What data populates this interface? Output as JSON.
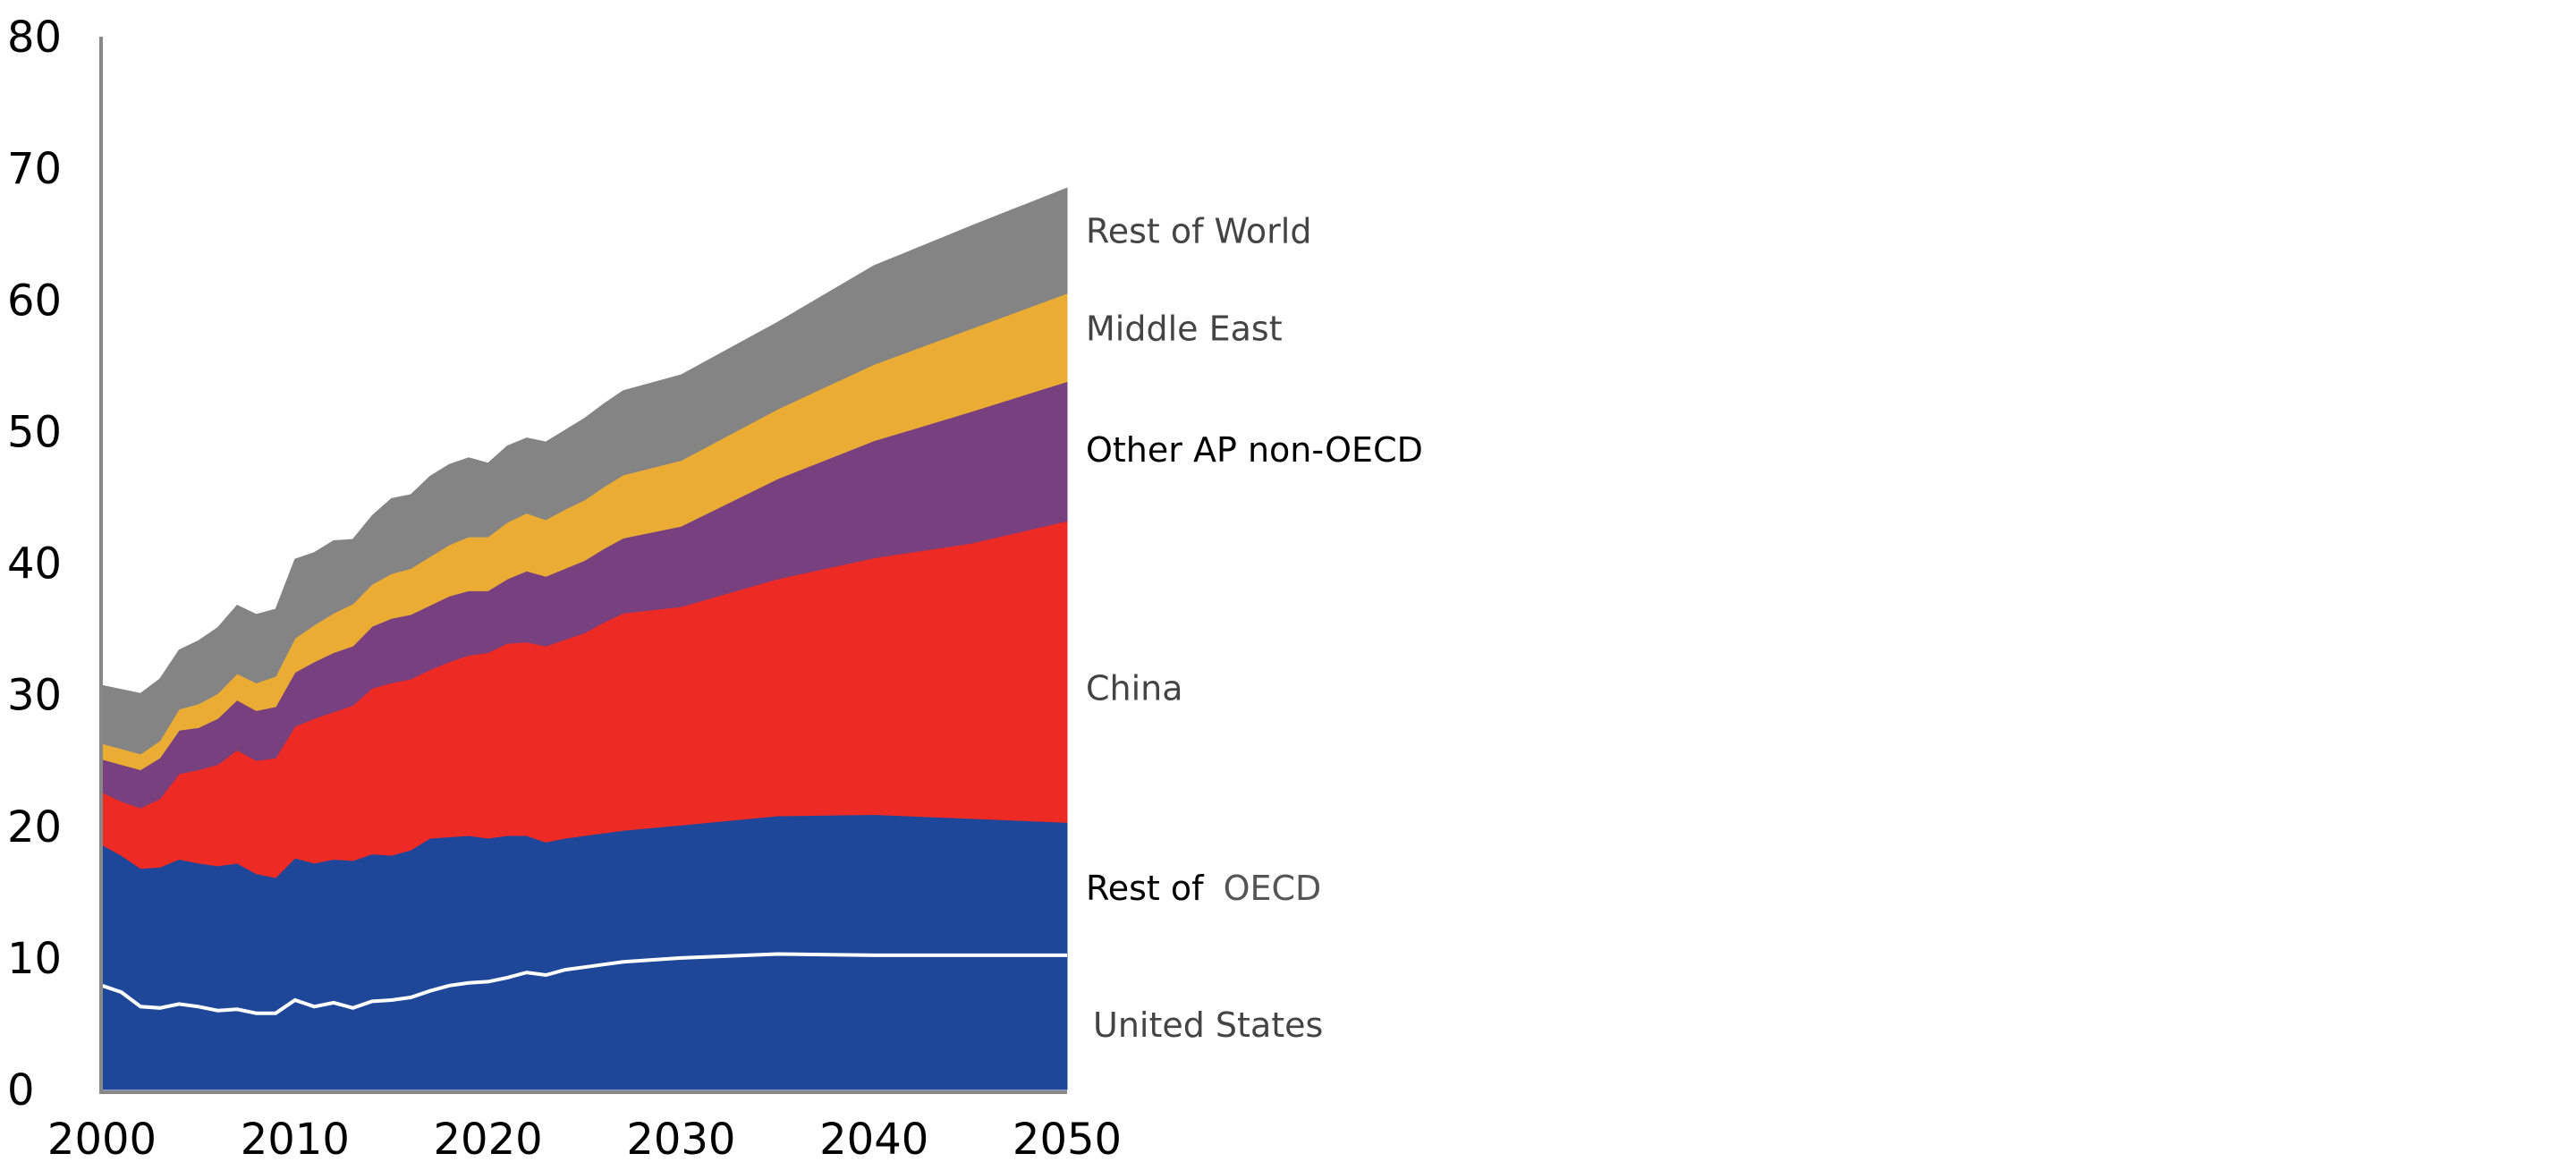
{
  "chart_data": {
    "type": "area",
    "stacked": true,
    "title": "",
    "xlabel": "",
    "ylabel": "",
    "xlim": [
      2000,
      2050
    ],
    "ylim": [
      0,
      80
    ],
    "yticks": [
      0,
      10,
      20,
      30,
      40,
      50,
      60,
      70,
      80
    ],
    "xticks": [
      2000,
      2010,
      2020,
      2030,
      2040,
      2050
    ],
    "ytick_labels": [
      "0",
      "10",
      "20",
      "30",
      "40",
      "50",
      "60",
      "70",
      "80"
    ],
    "xtick_labels": [
      "2000",
      "2010",
      "2020",
      "2030",
      "2040",
      "2050"
    ],
    "grid": false,
    "legend": "direct-labels-right",
    "x": [
      2000,
      2001,
      2002,
      2003,
      2004,
      2005,
      2006,
      2007,
      2008,
      2009,
      2010,
      2011,
      2012,
      2013,
      2014,
      2015,
      2016,
      2017,
      2018,
      2019,
      2020,
      2021,
      2022,
      2023,
      2024,
      2025,
      2026,
      2027,
      2030,
      2035,
      2040,
      2045,
      2050
    ],
    "series": [
      {
        "name": "United States",
        "label": "United States",
        "color": "#1e4799",
        "label_color": "#444444",
        "values": [
          7.9,
          7.4,
          6.3,
          6.2,
          6.5,
          6.3,
          6.0,
          6.1,
          5.8,
          5.8,
          6.8,
          6.3,
          6.6,
          6.2,
          6.7,
          6.8,
          7.0,
          7.5,
          7.9,
          8.1,
          8.2,
          8.5,
          8.9,
          8.7,
          9.1,
          9.3,
          9.5,
          9.7,
          10.0,
          10.3,
          10.2,
          10.2,
          10.2
        ]
      },
      {
        "name": "Rest of OECD",
        "label_parts": [
          "Rest of",
          "OECD"
        ],
        "label": "Rest of OECD",
        "color": "#1e4799",
        "label_color": "#000000",
        "label_color2": "#555555",
        "values": [
          10.7,
          10.4,
          10.5,
          10.7,
          11.0,
          10.9,
          11.0,
          11.1,
          10.6,
          10.3,
          10.8,
          10.9,
          10.9,
          11.2,
          11.2,
          11.0,
          11.2,
          11.6,
          11.3,
          11.2,
          10.9,
          10.8,
          10.4,
          10.1,
          10.0,
          10.0,
          10.0,
          10.0,
          10.1,
          10.5,
          10.7,
          10.4,
          10.1
        ]
      },
      {
        "name": "China",
        "label": "China",
        "color": "#ee2a24",
        "label_color": "#444444",
        "values": [
          4.0,
          4.1,
          4.6,
          5.2,
          6.5,
          7.1,
          7.7,
          8.6,
          8.6,
          9.1,
          10.0,
          11.0,
          11.2,
          11.8,
          12.6,
          13.1,
          13.0,
          12.8,
          13.3,
          13.7,
          14.1,
          14.6,
          14.7,
          14.9,
          15.1,
          15.4,
          16.0,
          16.5,
          16.6,
          18.0,
          19.5,
          20.9,
          22.9
        ]
      },
      {
        "name": "Other AP non-OECD",
        "label": "Other AP non-OECD",
        "color": "#78407f",
        "label_color": "#000000",
        "values": [
          2.5,
          2.8,
          2.9,
          3.1,
          3.3,
          3.2,
          3.5,
          3.8,
          3.8,
          3.9,
          4.1,
          4.3,
          4.5,
          4.5,
          4.7,
          4.9,
          4.9,
          4.9,
          5.0,
          4.9,
          4.7,
          4.9,
          5.4,
          5.3,
          5.4,
          5.5,
          5.6,
          5.7,
          6.1,
          7.6,
          8.9,
          10.0,
          10.6
        ]
      },
      {
        "name": "Middle East",
        "label": "Middle East",
        "color": "#ebac34",
        "label_color": "#444444",
        "values": [
          1.2,
          1.2,
          1.2,
          1.3,
          1.6,
          1.8,
          1.9,
          2.0,
          2.1,
          2.3,
          2.6,
          2.8,
          3.0,
          3.2,
          3.2,
          3.4,
          3.5,
          3.7,
          3.9,
          4.1,
          4.1,
          4.3,
          4.4,
          4.3,
          4.5,
          4.6,
          4.7,
          4.8,
          5.0,
          5.3,
          5.8,
          6.3,
          6.7
        ]
      },
      {
        "name": "Rest of World",
        "label_parts": [
          "Rest of",
          "World"
        ],
        "label": "Rest of World",
        "color": "#848484",
        "label_color": "#444444",
        "values": [
          4.4,
          4.5,
          4.6,
          4.7,
          4.5,
          4.8,
          5.0,
          5.2,
          5.2,
          5.1,
          6.0,
          5.5,
          5.5,
          4.9,
          5.2,
          5.7,
          5.6,
          6.1,
          6.1,
          6.0,
          5.6,
          5.8,
          5.7,
          5.9,
          6.0,
          6.2,
          6.3,
          6.4,
          6.5,
          6.6,
          7.5,
          7.8,
          8.0
        ]
      }
    ],
    "us_line_color": "#ffffff",
    "axis_color": "#888888"
  }
}
